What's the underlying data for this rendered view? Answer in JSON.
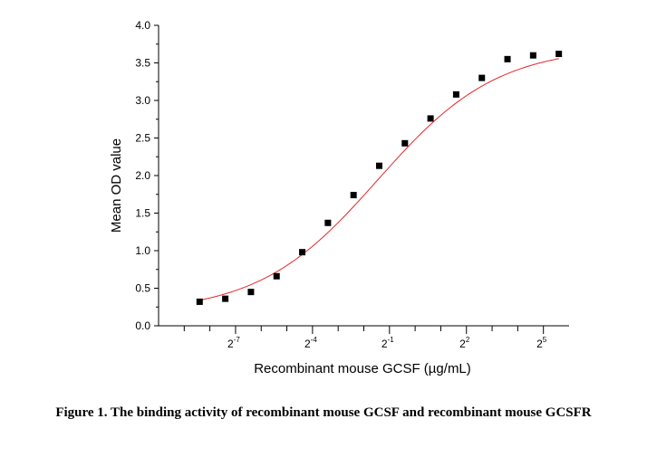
{
  "chart_data": {
    "type": "scatter",
    "title": "",
    "xlabel": "Recombinant mouse GCSF (µg/mL)",
    "ylabel": "Mean OD value",
    "x_scale": "log2",
    "xlim": [
      -10,
      6
    ],
    "ylim": [
      0.0,
      4.0
    ],
    "x_tick_labels": [
      {
        "x": -7,
        "base": "2",
        "exp": "-7"
      },
      {
        "x": -4,
        "base": "2",
        "exp": "-4"
      },
      {
        "x": -1,
        "base": "2",
        "exp": "-1"
      },
      {
        "x": 2,
        "base": "2",
        "exp": "2"
      },
      {
        "x": 5,
        "base": "2",
        "exp": "5"
      }
    ],
    "x_minor_ticks": [
      -9,
      -8,
      -6,
      -5,
      -3,
      -2,
      0,
      1,
      3,
      4
    ],
    "y_ticks": [
      0.0,
      0.5,
      1.0,
      1.5,
      2.0,
      2.5,
      3.0,
      3.5,
      4.0
    ],
    "y_tick_labels": [
      "0.0",
      "0.5",
      "1.0",
      "1.5",
      "2.0",
      "2.5",
      "3.0",
      "3.5",
      "4.0"
    ],
    "series": [
      {
        "name": "Mean OD value",
        "marker": "square",
        "color": "#000000",
        "x": [
          -8.4,
          -7.4,
          -6.4,
          -5.4,
          -4.4,
          -3.4,
          -2.4,
          -1.4,
          -0.4,
          0.6,
          1.6,
          2.6,
          3.6,
          4.6,
          5.6
        ],
        "y": [
          0.32,
          0.36,
          0.45,
          0.66,
          0.98,
          1.37,
          1.74,
          2.13,
          2.43,
          2.76,
          3.08,
          3.3,
          3.55,
          3.6,
          3.62
        ]
      }
    ],
    "fit": {
      "name": "sigmoidal fit",
      "color": "#e8262a",
      "x_start": -8.4,
      "x_end": 5.6,
      "bottom": 0.17,
      "top": 3.72,
      "x_half": -1.45,
      "slope": 0.43
    }
  },
  "caption": "Figure 1. The binding activity of recombinant mouse GCSF and recombinant mouse GCSFR"
}
